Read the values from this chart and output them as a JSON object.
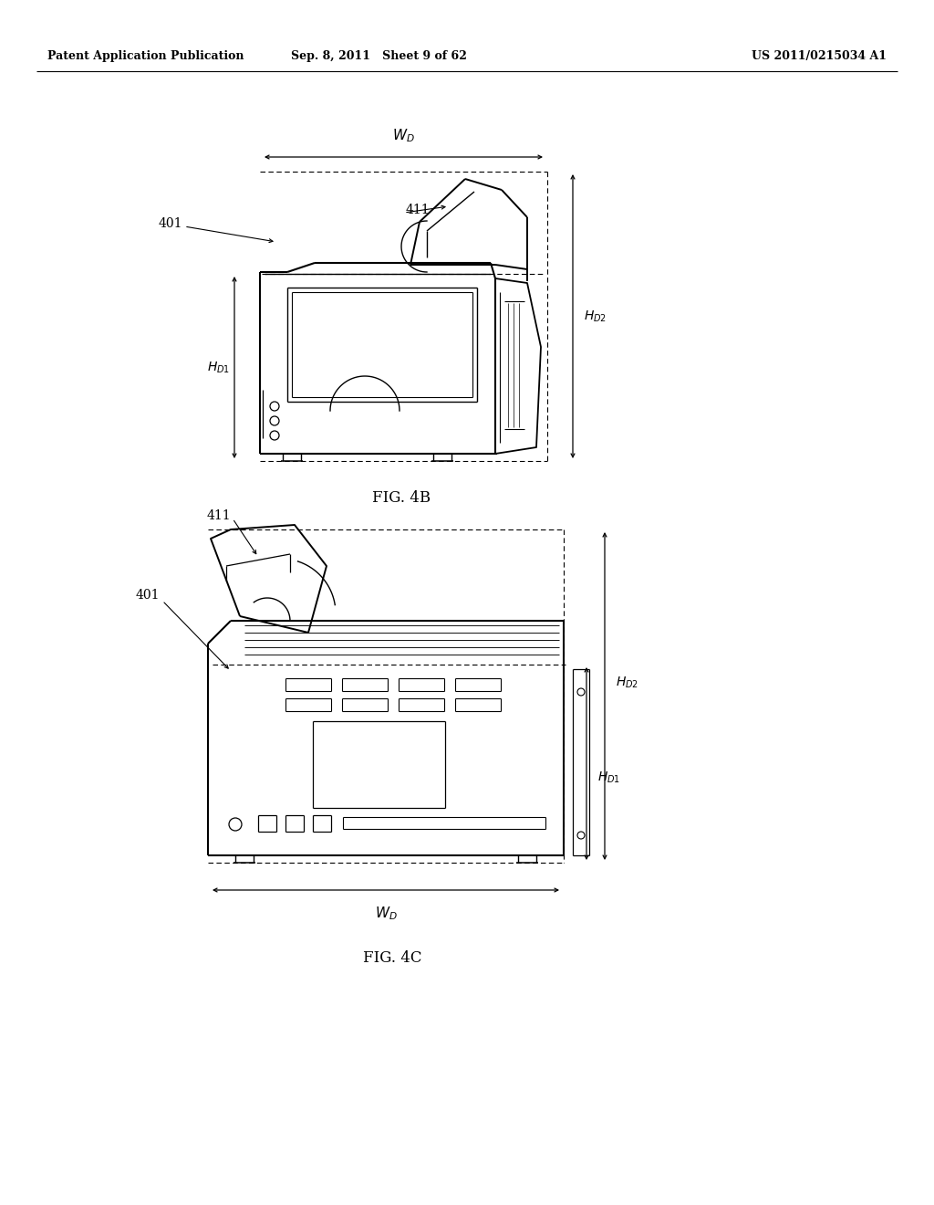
{
  "bg_color": "#ffffff",
  "header_left": "Patent Application Publication",
  "header_center": "Sep. 8, 2011   Sheet 9 of 62",
  "header_right": "US 2011/0215034 A1",
  "fig4b_caption": "FIG. 4B",
  "fig4c_caption": "FIG. 4C"
}
